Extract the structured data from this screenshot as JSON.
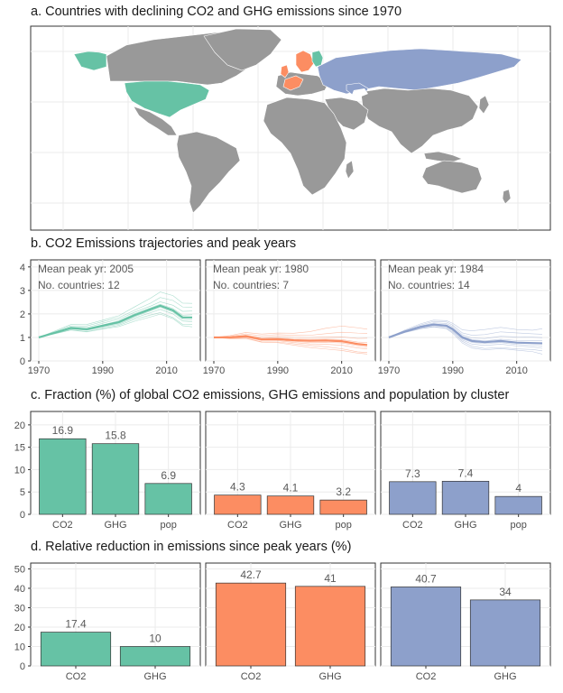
{
  "colors": {
    "cluster1": "#66c2a5",
    "cluster2": "#fc8d62",
    "cluster3": "#8da0cb",
    "other": "#999999"
  },
  "section_a": {
    "title": "a. Countries with declining CO2 and GHG emissions since 1970"
  },
  "section_b": {
    "title": "b. CO2 Emissions trajectories and peak years"
  },
  "section_c": {
    "title": "c. Fraction (%) of global CO2 emissions, GHG emissions and population by cluster"
  },
  "section_d": {
    "title": "d. Relative reduction in emissions since peak years (%)"
  },
  "chart_data": [
    {
      "type": "line",
      "id": "b",
      "x_range": [
        1970,
        2018
      ],
      "x_ticks": [
        "1970",
        "1990",
        "2010"
      ],
      "y_ticks": [
        "0",
        "1",
        "2",
        "3",
        "4"
      ],
      "ylim": [
        0,
        4.3
      ],
      "panels": [
        {
          "peak_text": "Mean peak yr: 2005",
          "count_text": "No. countries: 12",
          "color": "#66c2a5",
          "mean": {
            "x": [
              1970,
              1975,
              1980,
              1985,
              1990,
              1995,
              2000,
              2005,
              2008,
              2012,
              2015,
              2018
            ],
            "y": [
              1.0,
              1.2,
              1.4,
              1.35,
              1.5,
              1.65,
              1.95,
              2.2,
              2.35,
              2.15,
              1.85,
              1.85
            ]
          }
        },
        {
          "peak_text": "Mean peak yr: 1980",
          "count_text": "No. countries: 7",
          "color": "#fc8d62",
          "mean": {
            "x": [
              1970,
              1975,
              1980,
              1985,
              1990,
              1995,
              2000,
              2005,
              2010,
              2015,
              2018
            ],
            "y": [
              1.0,
              1.0,
              1.05,
              0.92,
              0.93,
              0.88,
              0.86,
              0.87,
              0.84,
              0.72,
              0.68
            ]
          }
        },
        {
          "peak_text": "Mean peak yr: 1984",
          "count_text": "No. countries: 14",
          "color": "#8da0cb",
          "mean": {
            "x": [
              1970,
              1975,
              1980,
              1984,
              1988,
              1990,
              1993,
              1996,
              2000,
              2005,
              2010,
              2015,
              2018
            ],
            "y": [
              1.0,
              1.25,
              1.45,
              1.55,
              1.5,
              1.35,
              1.0,
              0.85,
              0.8,
              0.85,
              0.78,
              0.76,
              0.75
            ]
          }
        }
      ]
    },
    {
      "type": "bar",
      "id": "c",
      "categories": [
        "CO2",
        "GHG",
        "pop"
      ],
      "ylim": [
        0,
        23
      ],
      "y_ticks": [
        "0",
        "5",
        "10",
        "15",
        "20"
      ],
      "series": [
        {
          "values": [
            16.9,
            15.8,
            6.9
          ],
          "labels": [
            "16.9",
            "15.8",
            "6.9"
          ],
          "color": "#66c2a5"
        },
        {
          "values": [
            4.3,
            4.1,
            3.2
          ],
          "labels": [
            "4.3",
            "4.1",
            "3.2"
          ],
          "color": "#fc8d62"
        },
        {
          "values": [
            7.3,
            7.4,
            4
          ],
          "labels": [
            "7.3",
            "7.4",
            "4"
          ],
          "color": "#8da0cb"
        }
      ]
    },
    {
      "type": "bar",
      "id": "d",
      "categories": [
        "CO2",
        "GHG"
      ],
      "ylim": [
        0,
        53
      ],
      "y_ticks": [
        "0",
        "10",
        "20",
        "30",
        "40",
        "50"
      ],
      "series": [
        {
          "values": [
            17.4,
            10
          ],
          "labels": [
            "17.4",
            "10"
          ],
          "color": "#66c2a5"
        },
        {
          "values": [
            42.7,
            41
          ],
          "labels": [
            "42.7",
            "41"
          ],
          "color": "#fc8d62"
        },
        {
          "values": [
            40.7,
            34
          ],
          "labels": [
            "40.7",
            "34"
          ],
          "color": "#8da0cb"
        }
      ]
    }
  ]
}
